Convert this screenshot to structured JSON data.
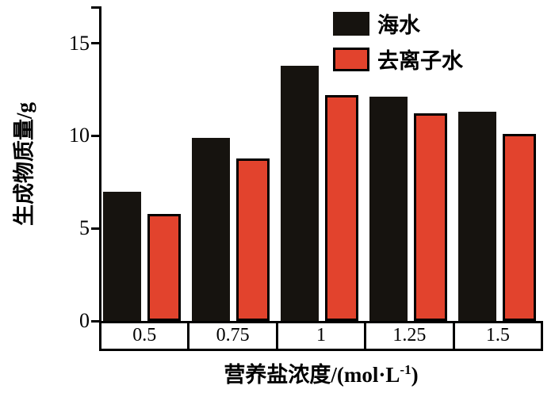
{
  "chart_data": {
    "type": "bar",
    "categories": [
      "0.5",
      "0.75",
      "1",
      "1.25",
      "1.5"
    ],
    "series": [
      {
        "name": "海水",
        "color": "#16130f",
        "values": [
          7.0,
          9.9,
          13.8,
          12.1,
          11.3
        ]
      },
      {
        "name": "去离子水",
        "color": "#e2432d",
        "values": [
          5.8,
          8.8,
          12.2,
          11.2,
          10.1
        ]
      }
    ],
    "title": "",
    "xlabel": "营养盐浓度/(mol·L⁻¹)",
    "xlabel_parts": {
      "base": "营养盐浓度/(mol·L",
      "sup": "-1",
      "close": ")"
    },
    "ylabel": "生成物质量/g",
    "yticks": [
      0,
      5,
      10,
      15
    ],
    "ylim": [
      0,
      17
    ],
    "grid": false,
    "legend_position": "top-center",
    "bar_edge_color": "#000000"
  }
}
